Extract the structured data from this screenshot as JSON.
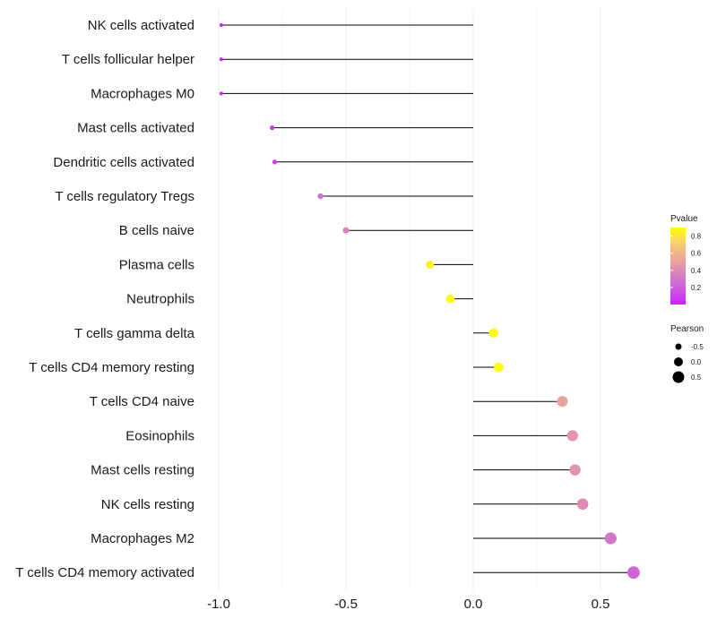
{
  "chart_data": {
    "type": "lollipop",
    "title": "",
    "xlabel": "",
    "ylabel": "",
    "xlim": [
      -1.0,
      0.65
    ],
    "xticks": [
      "-1.0",
      "-0.5",
      "0.0",
      "0.5"
    ],
    "xtick_values": [
      -1.0,
      -0.5,
      0.0,
      0.5
    ],
    "grid": true,
    "categories": [
      "NK cells activated",
      "T cells follicular helper",
      "Macrophages M0",
      "Mast cells activated",
      "Dendritic cells activated",
      "T cells regulatory  Tregs",
      "B cells naive",
      "Plasma cells",
      "Neutrophils",
      "T cells gamma delta",
      "T cells CD4 memory resting",
      "T cells CD4 naive",
      "Eosinophils",
      "Mast cells resting",
      "NK cells resting",
      "Macrophages M2",
      "T cells CD4 memory activated"
    ],
    "pearson": [
      -0.99,
      -0.99,
      -0.99,
      -0.79,
      -0.78,
      -0.6,
      -0.5,
      -0.17,
      -0.09,
      0.08,
      0.1,
      0.35,
      0.39,
      0.4,
      0.43,
      0.54,
      0.63
    ],
    "pvalue": [
      0.0,
      0.0,
      0.0,
      0.08,
      0.1,
      0.27,
      0.35,
      0.84,
      0.88,
      0.9,
      0.88,
      0.52,
      0.45,
      0.44,
      0.4,
      0.3,
      0.22
    ],
    "color_legend": {
      "title": "Pvalue",
      "ticks": [
        "0.8",
        "0.6",
        "0.4",
        "0.2"
      ],
      "tick_values": [
        0.8,
        0.6,
        0.4,
        0.2
      ],
      "range": [
        0.0,
        0.9
      ],
      "low_color": "#cc33ff",
      "mid_color": "#e8a0a8",
      "high_color": "#ffff00"
    },
    "size_legend": {
      "title": "Pearson",
      "labels": [
        "-0.5",
        "0.0",
        "0.5"
      ],
      "values": [
        -0.5,
        0.0,
        0.5
      ]
    },
    "segment_color": "#000000"
  }
}
